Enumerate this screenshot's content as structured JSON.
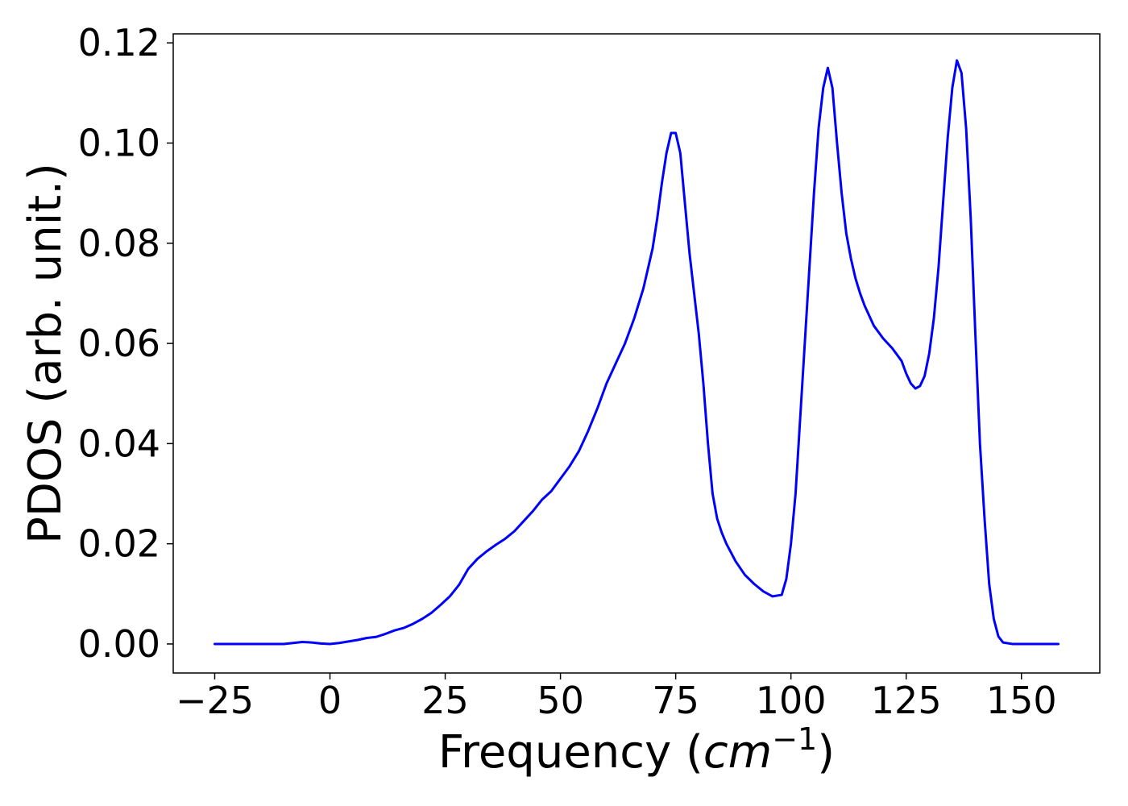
{
  "chart_data": {
    "type": "line",
    "xlabel": {
      "prefix": "Frequency (",
      "unit": "cm",
      "exponent": "−1",
      "suffix": ")"
    },
    "ylabel": "PDOS (arb. unit.)",
    "xlim": [
      -34,
      167
    ],
    "ylim": [
      -0.0058,
      0.1218
    ],
    "xticks": [
      -25,
      0,
      25,
      50,
      75,
      100,
      125,
      150
    ],
    "xtick_labels": [
      "−25",
      "0",
      "25",
      "50",
      "75",
      "100",
      "125",
      "150"
    ],
    "yticks": [
      0.0,
      0.02,
      0.04,
      0.06,
      0.08,
      0.1,
      0.12
    ],
    "ytick_labels": [
      "0.00",
      "0.02",
      "0.04",
      "0.06",
      "0.08",
      "0.10",
      "0.12"
    ],
    "grid": false,
    "series": [
      {
        "color": "#0000ff",
        "x": [
          -25,
          -20,
          -15,
          -10,
          -8,
          -6,
          -4,
          -2,
          0,
          2,
          4,
          6,
          8,
          10,
          12,
          14,
          16,
          18,
          20,
          22,
          24,
          26,
          28,
          30,
          32,
          34,
          36,
          38,
          40,
          42,
          44,
          46,
          48,
          50,
          52,
          54,
          56,
          58,
          60,
          62,
          64,
          66,
          68,
          70,
          71,
          72,
          73,
          74,
          75,
          76,
          77,
          78,
          79,
          80,
          81,
          82,
          83,
          84,
          85,
          86,
          88,
          90,
          92,
          94,
          96,
          98,
          99,
          100,
          101,
          102,
          103,
          104,
          105,
          106,
          107,
          108,
          109,
          110,
          111,
          112,
          113,
          114,
          115,
          116,
          118,
          120,
          122,
          124,
          125,
          126,
          127,
          128,
          129,
          130,
          131,
          132,
          133,
          134,
          135,
          136,
          137,
          138,
          139,
          140,
          141,
          142,
          143,
          144,
          145,
          146,
          148,
          150,
          153,
          158
        ],
        "y": [
          0.0,
          0.0,
          0.0,
          0.0,
          0.0002,
          0.0004,
          0.0003,
          0.0001,
          0.0,
          0.0002,
          0.0005,
          0.0008,
          0.0012,
          0.0014,
          0.002,
          0.0027,
          0.0032,
          0.004,
          0.005,
          0.0062,
          0.0078,
          0.0095,
          0.0118,
          0.015,
          0.017,
          0.0185,
          0.0198,
          0.021,
          0.0225,
          0.0245,
          0.0265,
          0.0288,
          0.0305,
          0.033,
          0.0355,
          0.0385,
          0.0425,
          0.047,
          0.052,
          0.056,
          0.06,
          0.065,
          0.071,
          0.079,
          0.085,
          0.092,
          0.098,
          0.102,
          0.102,
          0.098,
          0.088,
          0.078,
          0.07,
          0.062,
          0.052,
          0.04,
          0.03,
          0.025,
          0.0222,
          0.02,
          0.0165,
          0.0138,
          0.012,
          0.0105,
          0.0095,
          0.0098,
          0.013,
          0.02,
          0.03,
          0.045,
          0.06,
          0.075,
          0.09,
          0.103,
          0.111,
          0.115,
          0.111,
          0.1,
          0.09,
          0.082,
          0.077,
          0.073,
          0.07,
          0.0675,
          0.0635,
          0.061,
          0.059,
          0.0565,
          0.054,
          0.052,
          0.051,
          0.0515,
          0.0535,
          0.058,
          0.065,
          0.075,
          0.088,
          0.101,
          0.111,
          0.1165,
          0.114,
          0.103,
          0.085,
          0.062,
          0.04,
          0.025,
          0.012,
          0.005,
          0.0015,
          0.0003,
          0.0,
          0.0,
          0.0,
          0.0
        ]
      }
    ]
  }
}
